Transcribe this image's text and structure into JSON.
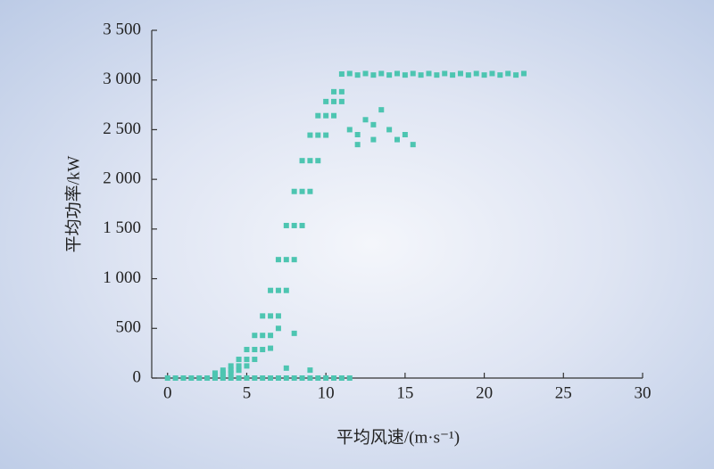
{
  "chart_data": {
    "type": "scatter",
    "xlabel": "平均风速/(m·s⁻¹)",
    "ylabel": "平均功率/kW",
    "color": "#4dc5b1",
    "xlim": [
      -1,
      30
    ],
    "xticks": [
      0,
      5,
      10,
      15,
      20,
      25,
      30
    ],
    "ylim": [
      0,
      3500
    ],
    "yticks": [
      0,
      500,
      {
        "value": 1000,
        "label": "1 000"
      },
      {
        "value": 1500,
        "label": "1 500"
      },
      {
        "value": 2000,
        "label": "2 000"
      },
      {
        "value": 2500,
        "label": "2 500"
      },
      {
        "value": 3000,
        "label": "3 000"
      },
      {
        "value": 3500,
        "label": "3 500"
      }
    ],
    "x": [
      3,
      3.5,
      4,
      4.5,
      5,
      5.5,
      6,
      6.5,
      7,
      7.5,
      8,
      8.5,
      9,
      9.5,
      10,
      10.5,
      11,
      3,
      3.5,
      4,
      4.5,
      5,
      5.5,
      6,
      6.5,
      7,
      7.5,
      8,
      8.5,
      9,
      9.5,
      10,
      10.5,
      11,
      3,
      3.5,
      4,
      4.5,
      5,
      5.5,
      6,
      6.5,
      7,
      7.5,
      8,
      8.5,
      9,
      9.5,
      10,
      10.5,
      11,
      11.5,
      12,
      12.5,
      13,
      13.5,
      14,
      14.5,
      15,
      15.5,
      16,
      16.5,
      17,
      17.5,
      18,
      18.5,
      19,
      19.5,
      20,
      20.5,
      21,
      21.5,
      22,
      22.5,
      11.5,
      12,
      12.5,
      13,
      13.5,
      14,
      14.5,
      15,
      15.5,
      12,
      13,
      7,
      8,
      7.5,
      9,
      6.5,
      0,
      0.5,
      1,
      1.5,
      2,
      2.5,
      3,
      3.5,
      4,
      4.5,
      5,
      5.5,
      6,
      6.5,
      7,
      7.5,
      8,
      8.5,
      9,
      9.5,
      10,
      10.5,
      11,
      11.5
    ],
    "values": [
      50,
      79,
      122,
      188,
      287,
      429,
      625,
      882,
      1192,
      1535,
      1878,
      2188,
      2445,
      2641,
      2783,
      2882,
      3060,
      21,
      32,
      50,
      79,
      122,
      188,
      287,
      429,
      625,
      882,
      1192,
      1535,
      1878,
      2188,
      2445,
      2641,
      2783,
      32,
      50,
      79,
      122,
      188,
      287,
      429,
      625,
      882,
      1192,
      1535,
      1878,
      2188,
      2445,
      2641,
      2783,
      2882,
      3065,
      3050,
      3065,
      3050,
      3065,
      3050,
      3065,
      3050,
      3065,
      3050,
      3065,
      3050,
      3065,
      3050,
      3065,
      3050,
      3065,
      3050,
      3065,
      3050,
      3065,
      3050,
      3065,
      2500,
      2450,
      2600,
      2550,
      2700,
      2500,
      2400,
      2450,
      2350,
      2350,
      2400,
      500,
      450,
      100,
      80,
      300,
      0,
      0,
      0,
      0,
      0,
      0,
      0,
      0,
      0,
      0,
      0,
      0,
      0,
      0,
      0,
      0,
      0,
      0,
      0,
      0,
      0,
      0,
      0,
      0
    ]
  }
}
